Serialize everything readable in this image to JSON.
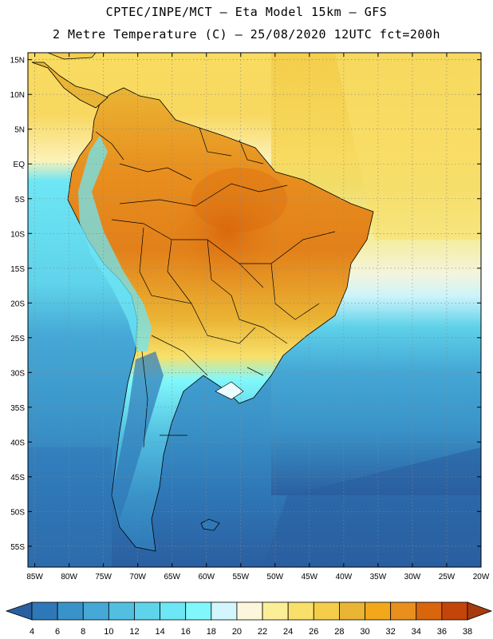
{
  "header": {
    "line1": "CPTEC/INPE/MCT –  Eta Model 15km – GFS",
    "line2": "2 Metre Temperature (C) – 25/08/2020 12UTC fct=200h"
  },
  "map": {
    "lat_labels": [
      "15N",
      "10N",
      "5N",
      "EQ",
      "5S",
      "10S",
      "15S",
      "20S",
      "25S",
      "30S",
      "35S",
      "40S",
      "45S",
      "50S",
      "55S"
    ],
    "lon_labels": [
      "85W",
      "80W",
      "75W",
      "70W",
      "65W",
      "60W",
      "55W",
      "50W",
      "45W",
      "40W",
      "35W",
      "30W",
      "25W",
      "20W"
    ],
    "extent": {
      "lon_min": -86,
      "lon_max": -20,
      "lat_min": -58,
      "lat_max": 16
    }
  },
  "legend": {
    "ticks": [
      "4",
      "6",
      "8",
      "10",
      "12",
      "14",
      "16",
      "18",
      "20",
      "22",
      "24",
      "26",
      "28",
      "30",
      "32",
      "34",
      "36",
      "38"
    ],
    "colors": [
      "#2a5fa0",
      "#2f78b8",
      "#3a93c8",
      "#45a8d6",
      "#52bfe0",
      "#5fd3ea",
      "#6de6f5",
      "#80f8fb",
      "#d2f6fb",
      "#fcf6dc",
      "#fcee98",
      "#f8e06a",
      "#f4cd4b",
      "#eab434",
      "#f2a81a",
      "#e88f1e",
      "#d9660c",
      "#c4450a",
      "#a83a10"
    ]
  }
}
